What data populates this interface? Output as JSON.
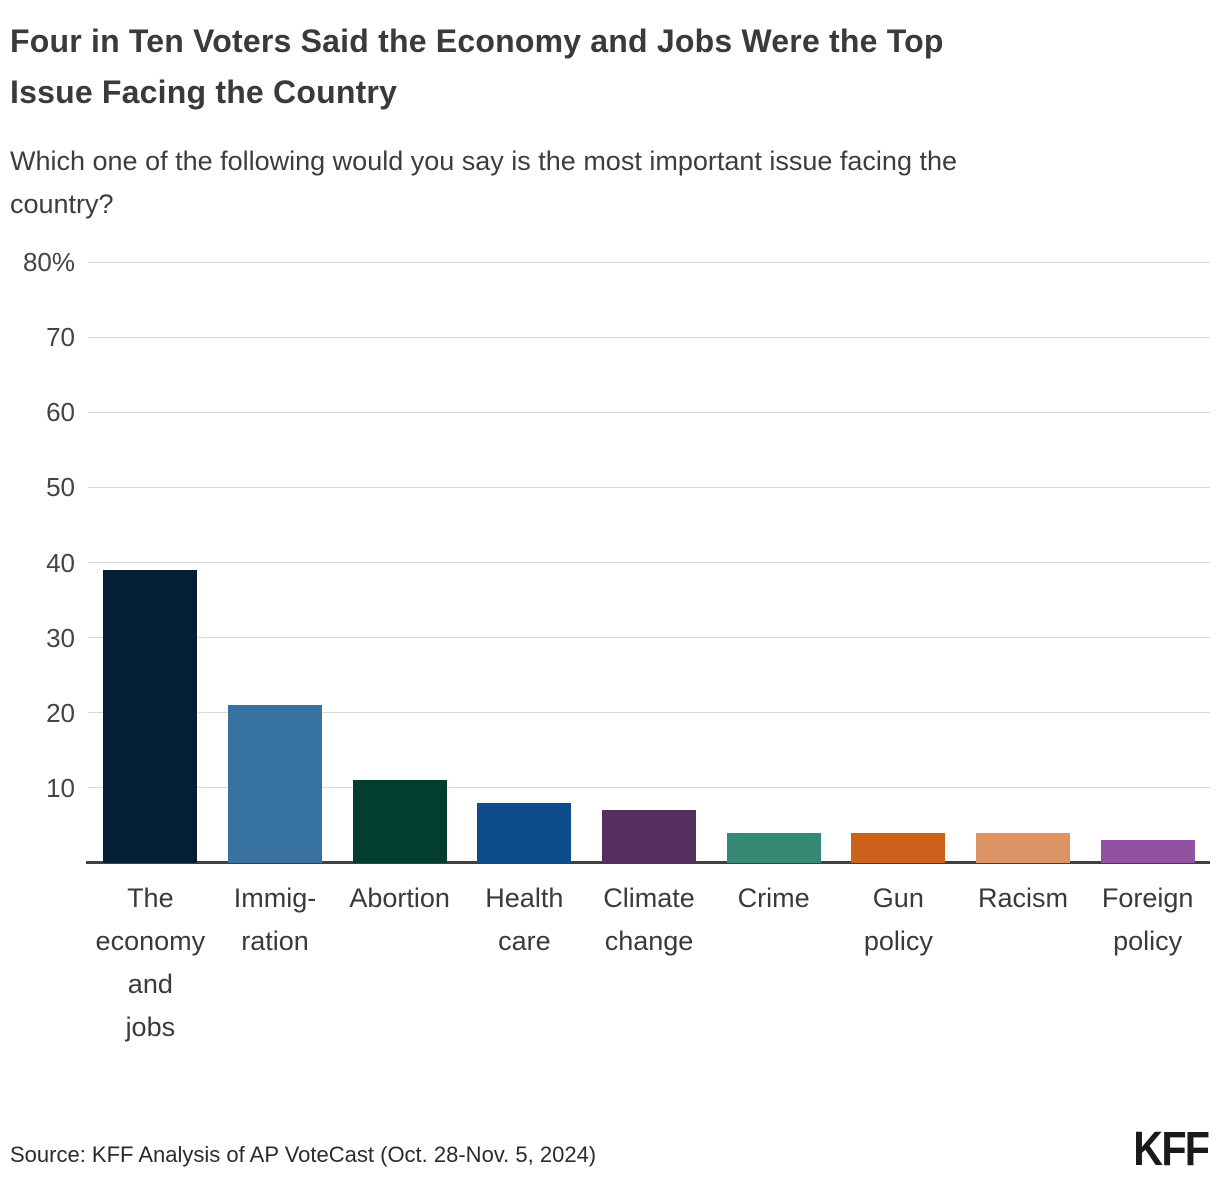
{
  "header": {
    "title_lines": [
      "Four in Ten Voters Said the Economy and Jobs Were the Top",
      "Issue Facing the Country"
    ],
    "subtitle_lines": [
      "Which one of the following would you say is the most important issue facing the",
      "country?"
    ]
  },
  "chart_data": {
    "type": "bar",
    "title": "Four in Ten Voters Said the Economy and Jobs Were the Top Issue Facing the Country",
    "subtitle": "Which one of the following would you say is the most important issue facing the country?",
    "categories": [
      "The economy and jobs",
      "Immigration",
      "Abortion",
      "Health care",
      "Climate change",
      "Crime",
      "Gun policy",
      "Racism",
      "Foreign policy"
    ],
    "category_label_lines": [
      [
        "The",
        "economy",
        "and",
        "jobs"
      ],
      [
        "Immig-",
        "ration"
      ],
      [
        "Abortion"
      ],
      [
        "Health",
        "care"
      ],
      [
        "Climate",
        "change"
      ],
      [
        "Crime"
      ],
      [
        "Gun",
        "policy"
      ],
      [
        "Racism"
      ],
      [
        "Foreign",
        "policy"
      ]
    ],
    "values": [
      39,
      21,
      11,
      8,
      7,
      4,
      4,
      4,
      3
    ],
    "bar_colors": [
      "#041e35",
      "#3772a1",
      "#033d30",
      "#0e4d8d",
      "#552f60",
      "#348874",
      "#cc6119",
      "#dd9464",
      "#9351a2"
    ],
    "xlabel": "",
    "ylabel": "",
    "ylim": [
      0,
      80
    ],
    "yticks": [
      10,
      20,
      30,
      40,
      50,
      60,
      70,
      80
    ],
    "ytick_labels": [
      "10",
      "20",
      "30",
      "40",
      "50",
      "60",
      "70",
      "80%"
    ],
    "grid": true,
    "legend_position": "none"
  },
  "footer": {
    "source": "Source: KFF Analysis of AP VoteCast (Oct. 28-Nov. 5, 2024)",
    "logo_text": "KFF"
  }
}
